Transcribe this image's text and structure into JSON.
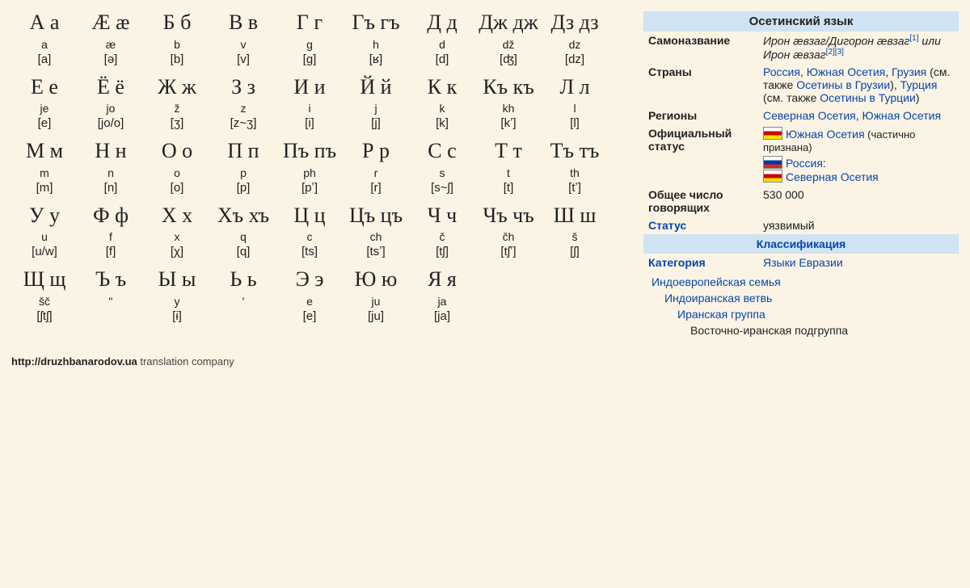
{
  "alphabet": {
    "rows": [
      [
        {
          "letter": "А а",
          "tr": "a",
          "ipa": "[a]"
        },
        {
          "letter": "Ӕ ӕ",
          "tr": "æ",
          "ipa": "[ə]"
        },
        {
          "letter": "Б б",
          "tr": "b",
          "ipa": "[b]"
        },
        {
          "letter": "В в",
          "tr": "v",
          "ipa": "[v]"
        },
        {
          "letter": "Г г",
          "tr": "g",
          "ipa": "[g]"
        },
        {
          "letter": "Гъ гъ",
          "tr": "h",
          "ipa": "[ʁ]"
        },
        {
          "letter": "Д д",
          "tr": "d",
          "ipa": "[d]"
        },
        {
          "letter": "Дж дж",
          "tr": "dž",
          "ipa": "[ʤ]"
        },
        {
          "letter": "Дз дз",
          "tr": "dz",
          "ipa": "[dz]"
        }
      ],
      [
        {
          "letter": "Е е",
          "tr": "je",
          "ipa": "[e]"
        },
        {
          "letter": "Ё ё",
          "tr": "jo",
          "ipa": "[jo/o]"
        },
        {
          "letter": "Ж ж",
          "tr": "ž",
          "ipa": "[ʒ]"
        },
        {
          "letter": "З з",
          "tr": "z",
          "ipa": "[z~ʒ]"
        },
        {
          "letter": "И и",
          "tr": "i",
          "ipa": "[i]"
        },
        {
          "letter": "Й й",
          "tr": "j",
          "ipa": "[j]"
        },
        {
          "letter": "К к",
          "tr": "k",
          "ipa": "[k]"
        },
        {
          "letter": "Къ къ",
          "tr": "kh",
          "ipa": "[kʼ]"
        },
        {
          "letter": "Л л",
          "tr": "l",
          "ipa": "[l]"
        }
      ],
      [
        {
          "letter": "М м",
          "tr": "m",
          "ipa": "[m]"
        },
        {
          "letter": "Н н",
          "tr": "n",
          "ipa": "[n]"
        },
        {
          "letter": "О о",
          "tr": "o",
          "ipa": "[o]"
        },
        {
          "letter": "П п",
          "tr": "p",
          "ipa": "[p]"
        },
        {
          "letter": "Пъ пъ",
          "tr": "ph",
          "ipa": "[pʼ]"
        },
        {
          "letter": "Р р",
          "tr": "r",
          "ipa": "[r]"
        },
        {
          "letter": "С с",
          "tr": "s",
          "ipa": "[s~ʃ]"
        },
        {
          "letter": "Т т",
          "tr": "t",
          "ipa": "[t]"
        },
        {
          "letter": "Тъ тъ",
          "tr": "th",
          "ipa": "[tʼ]"
        }
      ],
      [
        {
          "letter": "У у",
          "tr": "u",
          "ipa": "[u/w]"
        },
        {
          "letter": "Ф ф",
          "tr": "f",
          "ipa": "[f]"
        },
        {
          "letter": "Х х",
          "tr": "x",
          "ipa": "[χ]"
        },
        {
          "letter": "Хъ хъ",
          "tr": "q",
          "ipa": "[q]"
        },
        {
          "letter": "Ц ц",
          "tr": "c",
          "ipa": "[ts]"
        },
        {
          "letter": "Цъ цъ",
          "tr": "ch",
          "ipa": "[tsʼ]"
        },
        {
          "letter": "Ч ч",
          "tr": "č",
          "ipa": "[tʃ]"
        },
        {
          "letter": "Чъ чъ",
          "tr": "čh",
          "ipa": "[tʃʼ]"
        },
        {
          "letter": "Ш ш",
          "tr": "š",
          "ipa": "[ʃ]"
        }
      ],
      [
        {
          "letter": "Щ щ",
          "tr": "šč",
          "ipa": "[ʃtʃ]"
        },
        {
          "letter": "Ъ ъ",
          "tr": "\"",
          "ipa": ""
        },
        {
          "letter": "Ы ы",
          "tr": "y",
          "ipa": "[ɨ]"
        },
        {
          "letter": "Ь ь",
          "tr": "'",
          "ipa": ""
        },
        {
          "letter": "Э э",
          "tr": "e",
          "ipa": "[e]"
        },
        {
          "letter": "Ю ю",
          "tr": "ju",
          "ipa": "[ju]"
        },
        {
          "letter": "Я я",
          "tr": "ja",
          "ipa": "[ja]"
        }
      ]
    ]
  },
  "info": {
    "title": "Осетинский язык",
    "selfname_label": "Самоназвание",
    "selfname_value": "Ирон ӕвзаг/Дигорон ӕвзаг",
    "selfname_sup1": "[1]",
    "selfname_or": " или ",
    "selfname_value2": "Ирон ӕвзаг",
    "selfname_sup2": "[2][3]",
    "countries_label": "Страны",
    "countries_russia": "Россия",
    "countries_so": "Южная Осетия",
    "countries_georgia": "Грузия",
    "countries_note1a": " (см. также ",
    "countries_note1b": "Осетины в Грузии",
    "countries_sep": "), ",
    "countries_turkey": "Турция",
    "countries_note2a": " (см. также ",
    "countries_note2b": "Осетины в Турции",
    "countries_close": ")",
    "regions_label": "Регионы",
    "regions_no": "Северная Осетия",
    "regions_so": "Южная Осетия",
    "official_label": "Официальный статус",
    "official_so": "Южная Осетия",
    "official_so_note": " (частично признана)",
    "official_ru": "Россия",
    "official_ru_colon": ":",
    "official_no": "Северная Осетия",
    "speakers_label": "Общее число говорящих",
    "speakers_value": "530 000",
    "status_label": "Статус",
    "status_value": "уязвимый",
    "classification_title": "Классификация",
    "category_label": "Категория",
    "category_value": "Языки Евразии",
    "class1": "Индоевропейская семья",
    "class2": "Индоиранская ветвь",
    "class3": "Иранская группа",
    "class4": "Восточно-иранская подгруппа"
  },
  "footer": {
    "url": "http://druzhbanarodov.ua",
    "text": " translation company"
  }
}
